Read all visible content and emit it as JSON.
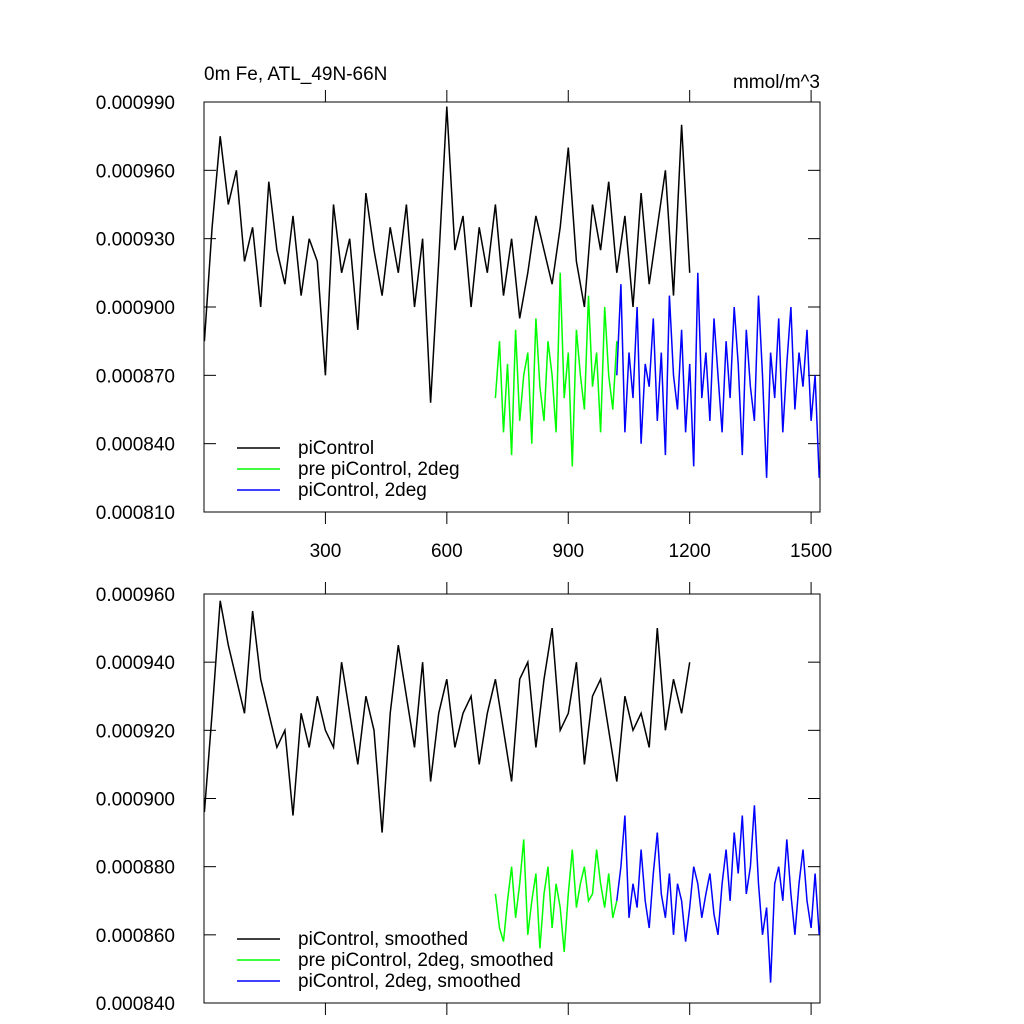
{
  "chart_data": [
    {
      "type": "line",
      "title": "0m Fe, ATL_49N-66N",
      "units": "mmol/m^3",
      "legend": "lower left",
      "xtick_labels": true,
      "xlim": [
        0,
        1522
      ],
      "xticks": [
        300,
        600,
        900,
        1200,
        1500
      ],
      "ylim": [
        0.00081,
        0.00099
      ],
      "yticks": [
        {
          "value": 0.00081,
          "label": "0.000810"
        },
        {
          "value": 0.00084,
          "label": "0.000840"
        },
        {
          "value": 0.00087,
          "label": "0.000870"
        },
        {
          "value": 0.0009,
          "label": "0.000900"
        },
        {
          "value": 0.00093,
          "label": "0.000930"
        },
        {
          "value": 0.00096,
          "label": "0.000960"
        },
        {
          "value": 0.00099,
          "label": "0.000990"
        }
      ],
      "series": [
        {
          "name": "piControl",
          "color": "#000000",
          "x": [
            1,
            20,
            40,
            60,
            80,
            100,
            120,
            140,
            160,
            180,
            200,
            220,
            240,
            260,
            280,
            300,
            320,
            340,
            360,
            380,
            400,
            420,
            440,
            460,
            480,
            500,
            520,
            540,
            560,
            580,
            600,
            620,
            640,
            660,
            680,
            700,
            720,
            740,
            760,
            780,
            800,
            820,
            840,
            860,
            880,
            900,
            920,
            940,
            960,
            980,
            1000,
            1020,
            1040,
            1060,
            1080,
            1100,
            1120,
            1140,
            1160,
            1180,
            1200
          ],
          "values": [
            0.000885,
            0.000935,
            0.000975,
            0.000945,
            0.00096,
            0.00092,
            0.000935,
            0.0009,
            0.000955,
            0.000925,
            0.00091,
            0.00094,
            0.000905,
            0.00093,
            0.00092,
            0.00087,
            0.000945,
            0.000915,
            0.00093,
            0.00089,
            0.00095,
            0.000925,
            0.000905,
            0.000935,
            0.000915,
            0.000945,
            0.0009,
            0.00093,
            0.000858,
            0.00092,
            0.000988,
            0.000925,
            0.00094,
            0.0009,
            0.000935,
            0.000915,
            0.000945,
            0.000905,
            0.00093,
            0.000895,
            0.000915,
            0.00094,
            0.000925,
            0.00091,
            0.000935,
            0.00097,
            0.00092,
            0.0009,
            0.000945,
            0.000925,
            0.000955,
            0.000915,
            0.00094,
            0.0009,
            0.00095,
            0.00091,
            0.000935,
            0.00096,
            0.000905,
            0.00098,
            0.000915
          ]
        },
        {
          "name": "pre piControl, 2deg",
          "color": "#00ff00",
          "x": [
            720,
            730,
            740,
            750,
            760,
            770,
            780,
            790,
            800,
            810,
            820,
            830,
            840,
            850,
            860,
            870,
            880,
            890,
            900,
            910,
            920,
            930,
            940,
            950,
            960,
            970,
            980,
            990,
            1000,
            1010,
            1020
          ],
          "values": [
            0.00086,
            0.000885,
            0.000845,
            0.000875,
            0.000835,
            0.00089,
            0.00085,
            0.00087,
            0.00088,
            0.00084,
            0.000895,
            0.000865,
            0.00085,
            0.000885,
            0.00087,
            0.000845,
            0.000915,
            0.00086,
            0.00088,
            0.00083,
            0.00089,
            0.00087,
            0.000855,
            0.000905,
            0.000865,
            0.00088,
            0.000845,
            0.0009,
            0.00087,
            0.000855,
            0.000885
          ]
        },
        {
          "name": "piControl, 2deg",
          "color": "#0000ff",
          "x": [
            1020,
            1030,
            1040,
            1050,
            1060,
            1070,
            1080,
            1090,
            1100,
            1110,
            1120,
            1130,
            1140,
            1150,
            1160,
            1170,
            1180,
            1190,
            1200,
            1210,
            1220,
            1230,
            1240,
            1250,
            1260,
            1270,
            1280,
            1290,
            1300,
            1310,
            1320,
            1330,
            1340,
            1350,
            1360,
            1370,
            1380,
            1390,
            1400,
            1410,
            1420,
            1430,
            1440,
            1450,
            1460,
            1470,
            1480,
            1490,
            1500,
            1510,
            1520
          ],
          "values": [
            0.00087,
            0.00091,
            0.000845,
            0.00088,
            0.00086,
            0.0009,
            0.00084,
            0.000875,
            0.000865,
            0.000895,
            0.00085,
            0.00088,
            0.000835,
            0.000905,
            0.00087,
            0.000855,
            0.00089,
            0.000845,
            0.000875,
            0.00083,
            0.000915,
            0.00086,
            0.00088,
            0.00085,
            0.000895,
            0.00087,
            0.000845,
            0.000885,
            0.00086,
            0.0009,
            0.000875,
            0.000835,
            0.00089,
            0.000865,
            0.00085,
            0.000905,
            0.00087,
            0.000825,
            0.00088,
            0.00086,
            0.000895,
            0.000845,
            0.000875,
            0.0009,
            0.000855,
            0.00088,
            0.000865,
            0.00089,
            0.00085,
            0.00087,
            0.000825
          ]
        }
      ]
    },
    {
      "type": "line",
      "legend": "lower left",
      "xtick_labels": false,
      "xlim": [
        0,
        1522
      ],
      "xticks": [
        300,
        600,
        900,
        1200,
        1500
      ],
      "ylim": [
        0.00084,
        0.00096
      ],
      "yticks": [
        {
          "value": 0.00084,
          "label": "0.000840"
        },
        {
          "value": 0.00086,
          "label": "0.000860"
        },
        {
          "value": 0.00088,
          "label": "0.000880"
        },
        {
          "value": 0.0009,
          "label": "0.000900"
        },
        {
          "value": 0.00092,
          "label": "0.000920"
        },
        {
          "value": 0.00094,
          "label": "0.000940"
        },
        {
          "value": 0.00096,
          "label": "0.000960"
        }
      ],
      "series": [
        {
          "name": "piControl, smoothed",
          "color": "#000000",
          "x": [
            1,
            20,
            40,
            60,
            80,
            100,
            120,
            140,
            160,
            180,
            200,
            220,
            240,
            260,
            280,
            300,
            320,
            340,
            360,
            380,
            400,
            420,
            440,
            460,
            480,
            500,
            520,
            540,
            560,
            580,
            600,
            620,
            640,
            660,
            680,
            700,
            720,
            740,
            760,
            780,
            800,
            820,
            840,
            860,
            880,
            900,
            920,
            940,
            960,
            980,
            1000,
            1020,
            1040,
            1060,
            1080,
            1100,
            1120,
            1140,
            1160,
            1180,
            1200
          ],
          "values": [
            0.000896,
            0.000925,
            0.000958,
            0.000945,
            0.000935,
            0.000925,
            0.000955,
            0.000935,
            0.000925,
            0.000915,
            0.00092,
            0.000895,
            0.000925,
            0.000915,
            0.00093,
            0.00092,
            0.000915,
            0.00094,
            0.000925,
            0.00091,
            0.00093,
            0.00092,
            0.00089,
            0.000925,
            0.000945,
            0.00093,
            0.000915,
            0.00094,
            0.000905,
            0.000925,
            0.000935,
            0.000915,
            0.000925,
            0.00093,
            0.00091,
            0.000925,
            0.000935,
            0.00092,
            0.000905,
            0.000935,
            0.00094,
            0.000915,
            0.000935,
            0.00095,
            0.00092,
            0.000925,
            0.00094,
            0.00091,
            0.00093,
            0.000935,
            0.00092,
            0.000905,
            0.00093,
            0.00092,
            0.000925,
            0.000915,
            0.00095,
            0.00092,
            0.000935,
            0.000925,
            0.00094
          ]
        },
        {
          "name": "pre piControl, 2deg, smoothed",
          "color": "#00ff00",
          "x": [
            720,
            730,
            740,
            750,
            760,
            770,
            780,
            790,
            800,
            810,
            820,
            830,
            840,
            850,
            860,
            870,
            880,
            890,
            900,
            910,
            920,
            930,
            940,
            950,
            960,
            970,
            980,
            990,
            1000,
            1010,
            1020
          ],
          "values": [
            0.000872,
            0.000862,
            0.000858,
            0.00087,
            0.00088,
            0.000865,
            0.000875,
            0.000888,
            0.00086,
            0.00087,
            0.000878,
            0.000856,
            0.000872,
            0.00088,
            0.000862,
            0.000875,
            0.000868,
            0.000855,
            0.000872,
            0.000885,
            0.000868,
            0.000875,
            0.00088,
            0.00087,
            0.000872,
            0.000885,
            0.000875,
            0.000868,
            0.000878,
            0.000865,
            0.00087
          ]
        },
        {
          "name": "piControl, 2deg, smoothed",
          "color": "#0000ff",
          "x": [
            1020,
            1030,
            1040,
            1050,
            1060,
            1070,
            1080,
            1090,
            1100,
            1110,
            1120,
            1130,
            1140,
            1150,
            1160,
            1170,
            1180,
            1190,
            1200,
            1210,
            1220,
            1230,
            1240,
            1250,
            1260,
            1270,
            1280,
            1290,
            1300,
            1310,
            1320,
            1330,
            1340,
            1350,
            1360,
            1370,
            1380,
            1390,
            1400,
            1410,
            1420,
            1430,
            1440,
            1450,
            1460,
            1470,
            1480,
            1490,
            1500,
            1510,
            1520
          ],
          "values": [
            0.00087,
            0.00088,
            0.000895,
            0.000865,
            0.000875,
            0.000868,
            0.000885,
            0.00087,
            0.000862,
            0.000878,
            0.00089,
            0.000872,
            0.000865,
            0.000878,
            0.00086,
            0.000875,
            0.00087,
            0.000858,
            0.000868,
            0.00088,
            0.000875,
            0.000865,
            0.000872,
            0.000878,
            0.000866,
            0.00086,
            0.000875,
            0.000885,
            0.00087,
            0.00089,
            0.000878,
            0.000895,
            0.000872,
            0.00088,
            0.000898,
            0.000875,
            0.00086,
            0.000868,
            0.000846,
            0.000875,
            0.00088,
            0.00087,
            0.000888,
            0.000872,
            0.00086,
            0.000875,
            0.000885,
            0.00087,
            0.000862,
            0.000878,
            0.00086
          ]
        }
      ]
    }
  ]
}
